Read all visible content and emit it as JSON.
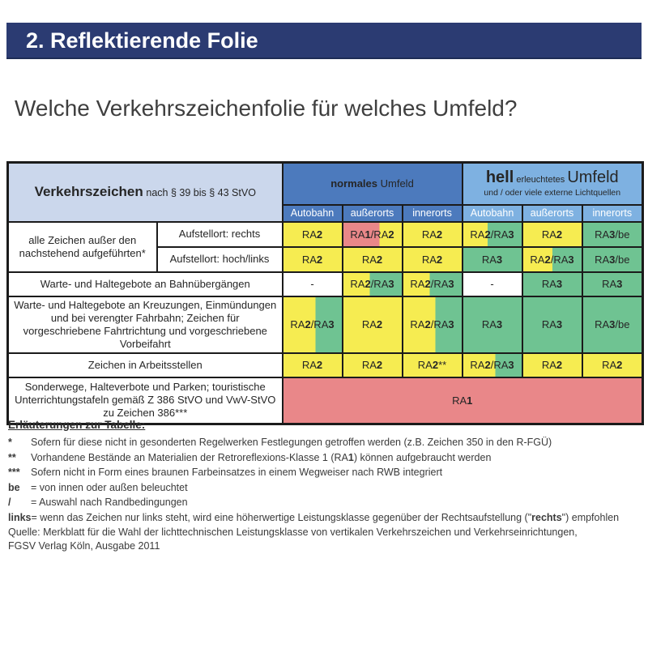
{
  "page": {
    "title_bar": "2. Reflektierende Folie",
    "subtitle": "Welche Verkehrszeichenfolie für welches Umfeld?"
  },
  "colors": {
    "yellow": "#F6EC51",
    "green": "#6FC392",
    "red": "#E98789",
    "white": "#FFFFFF",
    "normal_blue": "#4C7ABD",
    "bright_blue": "#7EB1E1",
    "title_navy": "#2B3B72",
    "corner_bg": "#CBD7EC",
    "border": "#1B1B1B"
  },
  "table": {
    "corner": {
      "title": "Verkehrszeichen",
      "subtitle": "nach § 39 bis § 43 StVO"
    },
    "group_headers": {
      "normal": {
        "bold": "normales",
        "rest": " Umfeld"
      },
      "bright": {
        "bold": "hell",
        "small": " erleuchtetes ",
        "rest": "Umfeld",
        "line2": "und / oder viele externe Lichtquellen"
      }
    },
    "col_headers": [
      "Autobahn",
      "außerorts",
      "innerorts",
      "Autobahn",
      "außerorts",
      "innerorts"
    ],
    "rows": {
      "r1": {
        "label": "alle Zeichen außer den nachstehend aufgeführten*",
        "sub1": {
          "label": "Aufstellort: rechts",
          "cells": [
            {
              "t": "RA[b]2[/b]",
              "bg": "yellow"
            },
            {
              "t": "RA[b]1[/b]/RA[b]2[/b]",
              "bg": "red/yellow 62"
            },
            {
              "t": "RA[b]2[/b]",
              "bg": "yellow"
            },
            {
              "t": "RA[b]2[/b]/RA[b]3[/b]",
              "bg": "yellow/green 42"
            },
            {
              "t": "RA[b]2[/b]",
              "bg": "yellow"
            },
            {
              "t": "RA[b]3[/b]/be",
              "bg": "green"
            }
          ]
        },
        "sub2": {
          "label": "Aufstellort: hoch/links",
          "cells": [
            {
              "t": "RA[b]2[/b]",
              "bg": "yellow"
            },
            {
              "t": "RA[b]2[/b]",
              "bg": "yellow"
            },
            {
              "t": "RA[b]2[/b]",
              "bg": "yellow"
            },
            {
              "t": "RA[b]3[/b]",
              "bg": "green"
            },
            {
              "t": "RA[b]2[/b]/RA[b]3[/b]",
              "bg": "yellow/green 50"
            },
            {
              "t": "RA[b]3[/b]/be",
              "bg": "green"
            }
          ]
        }
      },
      "r2": {
        "label": "Warte- und Haltegebote an Bahnübergängen",
        "cells": [
          {
            "t": "-",
            "bg": "white"
          },
          {
            "t": "RA[b]2[/b]/RA[b]3[/b]",
            "bg": "yellow/green 45"
          },
          {
            "t": "RA[b]2[/b]/RA[b]3[/b]",
            "bg": "yellow/green 45"
          },
          {
            "t": "-",
            "bg": "white"
          },
          {
            "t": "RA[b]3[/b]",
            "bg": "green"
          },
          {
            "t": "RA[b]3[/b]",
            "bg": "green"
          }
        ]
      },
      "r3": {
        "label": "Warte- und Haltegebote an Kreuzungen, Einmündungen und bei verengter Fahrbahn; Zeichen für vorgeschriebene Fahrtrichtung und vorgeschriebene Vorbeifahrt",
        "cells": [
          {
            "t": "RA[b]2[/b]/RA[b]3[/b]",
            "bg": "yellow/green 55"
          },
          {
            "t": "RA[b]2[/b]",
            "bg": "yellow"
          },
          {
            "t": "RA[b]2[/b]/RA[b]3[/b]",
            "bg": "yellow/green 55"
          },
          {
            "t": "RA[b]3[/b]",
            "bg": "green"
          },
          {
            "t": "RA[b]3[/b]",
            "bg": "green"
          },
          {
            "t": "RA[b]3[/b]/be",
            "bg": "green"
          }
        ]
      },
      "r4": {
        "label": "Zeichen in Arbeitsstellen",
        "cells": [
          {
            "t": "RA[b]2[/b]",
            "bg": "yellow"
          },
          {
            "t": "RA[b]2[/b]",
            "bg": "yellow"
          },
          {
            "t": "RA[b]2[/b]**",
            "bg": "yellow"
          },
          {
            "t": "RA[b]2[/b]/RA[b]3[/b]",
            "bg": "yellow/green 55"
          },
          {
            "t": "RA[b]2[/b]",
            "bg": "yellow"
          },
          {
            "t": "RA[b]2[/b]",
            "bg": "yellow"
          }
        ]
      },
      "r5": {
        "label": "Sonderwege, Halteverbote und Parken; touristische Unterrichtungstafeln gemäß Z 386 StVO und VwV-StVO zu Zeichen 386***",
        "cell": {
          "t": "RA[b]1[/b]",
          "bg": "red"
        }
      }
    }
  },
  "footnotes": {
    "title": "Erläuterungen zur Tabelle:",
    "items": [
      {
        "marker": "*",
        "text": "Sofern für diese nicht in gesonderten Regelwerken Festlegungen getroffen werden (z.B. Zeichen 350 in den R-FGÜ)"
      },
      {
        "marker": "**",
        "text": "Vorhandene Bestände an Materialien der Retroreflexions-Klasse 1 (RA[b]1[/b]) können aufgebraucht werden"
      },
      {
        "marker": "***",
        "text": "Sofern nicht in Form eines braunen Farbeinsatzes in einem Wegweiser nach RWB integriert"
      },
      {
        "marker": "be",
        "text": "= von innen oder außen beleuchtet"
      },
      {
        "marker": "/",
        "text": "= Auswahl nach Randbedingungen"
      },
      {
        "marker": "links",
        "text": "= wenn das Zeichen nur links steht, wird eine höherwertige Leistungsklasse gegenüber der Rechtsaufstellung (\"[b]rechts[/b]\") empfohlen"
      }
    ]
  },
  "source": {
    "line1": "Quelle: Merkblatt für die Wahl der lichttechnischen Leistungsklasse von vertikalen Verkehrszeichen und Verkehrseinrichtungen,",
    "line2": "FGSV Verlag Köln, Ausgabe 2011"
  }
}
